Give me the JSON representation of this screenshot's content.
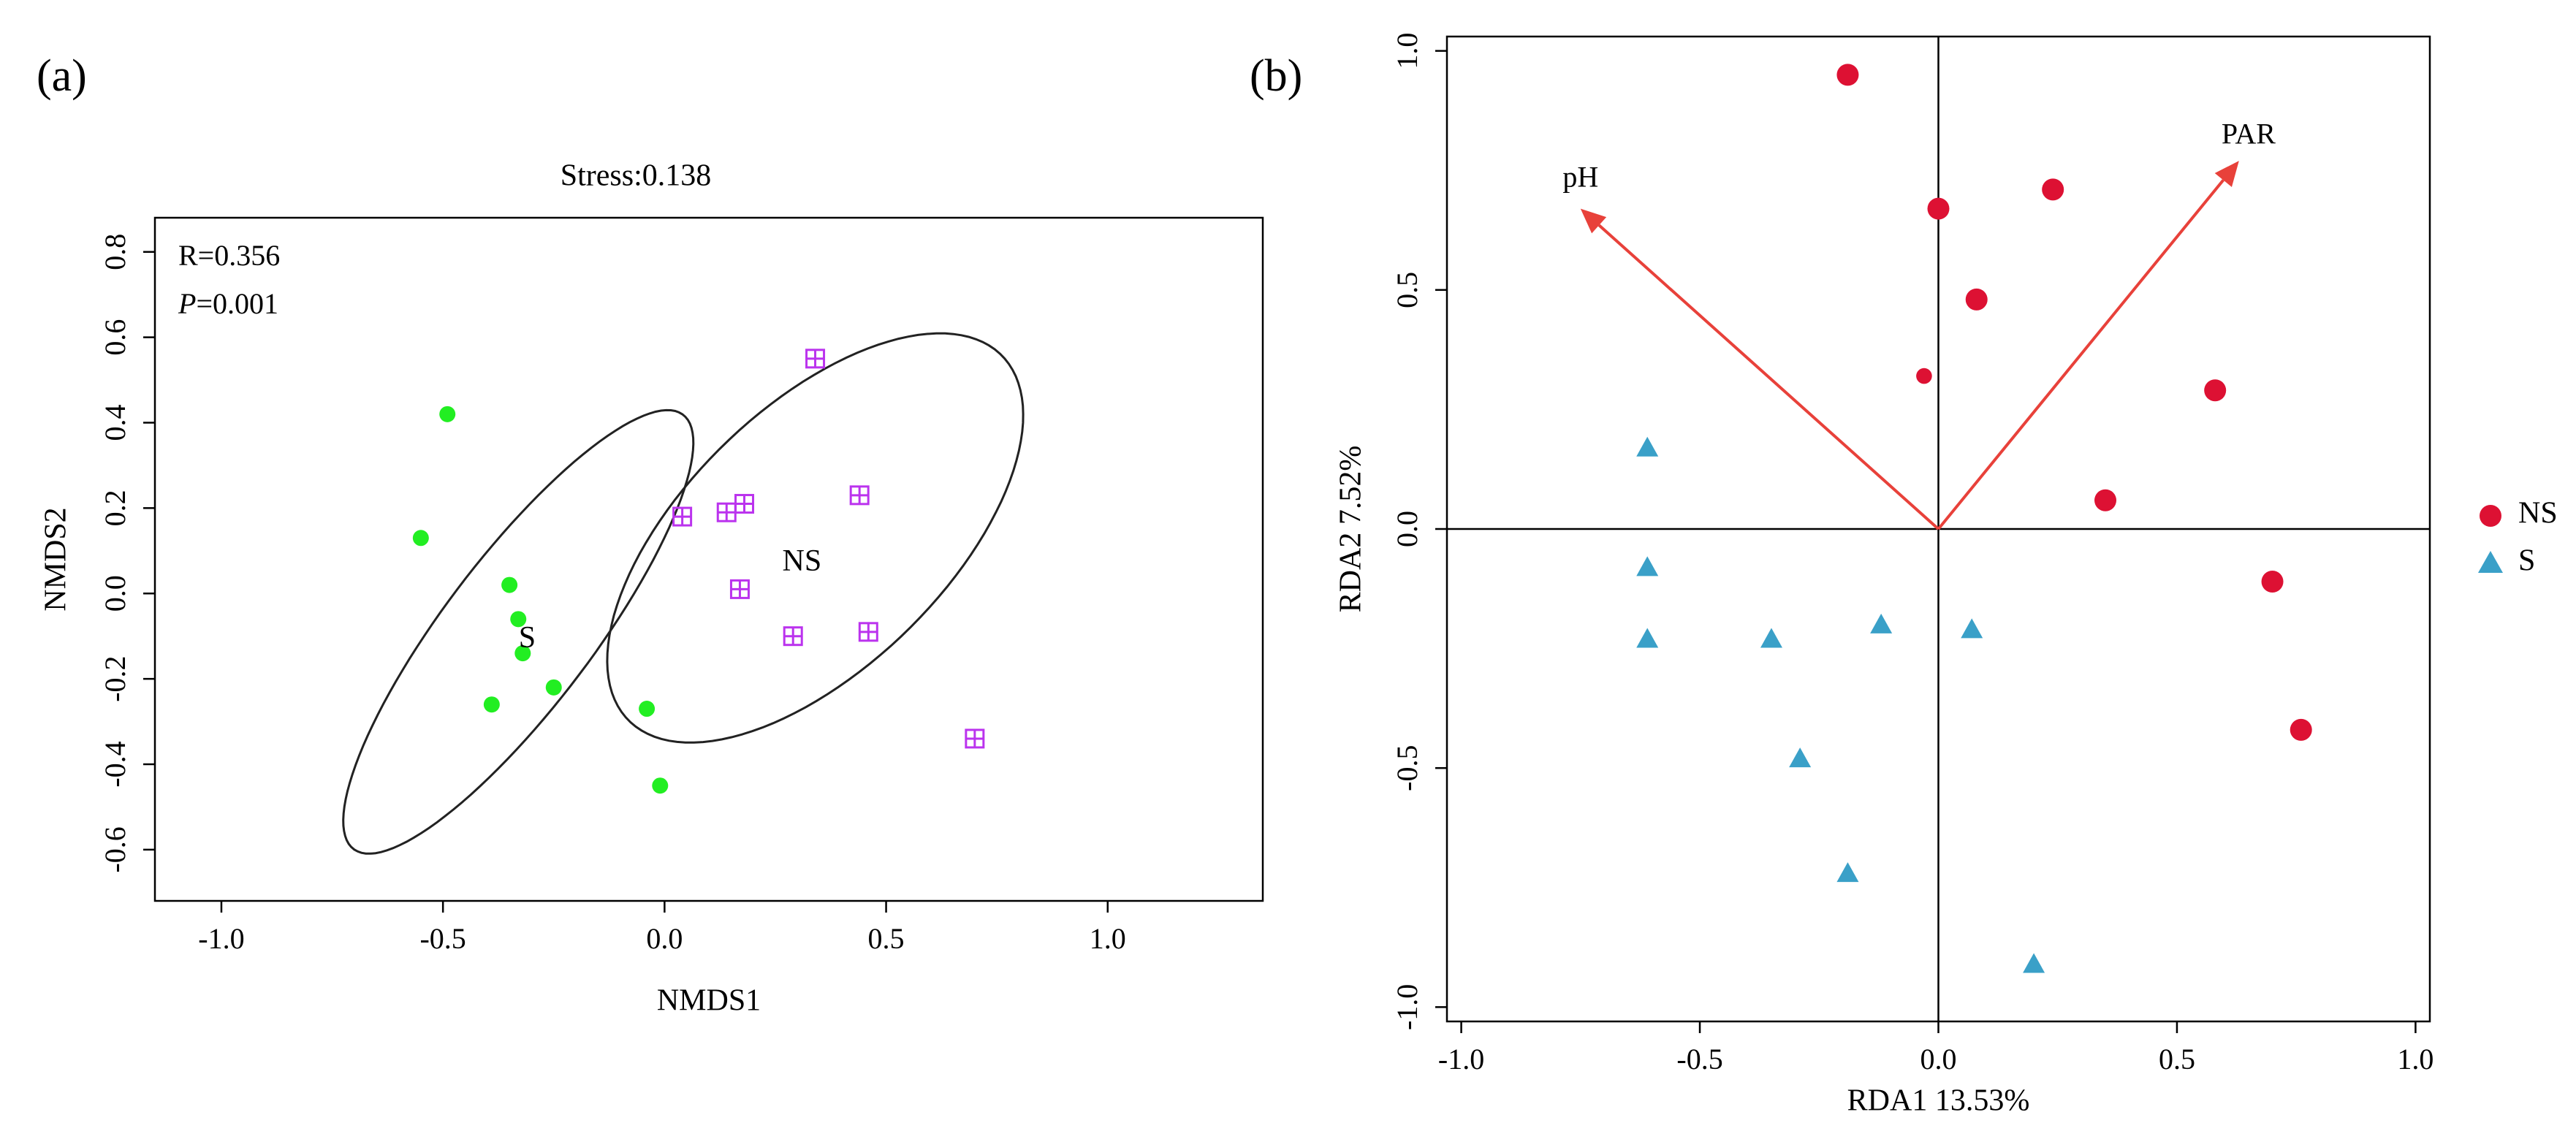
{
  "chart_data": [
    {
      "panel": "(a)",
      "type": "scatter",
      "title": "Stress:0.138",
      "xlabel": "NMDS1",
      "ylabel": "NMDS2",
      "xlim": [
        -1.15,
        1.35
      ],
      "ylim": [
        -0.72,
        0.88
      ],
      "xticks": [
        -1.0,
        -0.5,
        0.0,
        0.5,
        1.0
      ],
      "xtick_labels": [
        "-1.0",
        "-0.5",
        "0.0",
        "0.5",
        "1.0"
      ],
      "yticks": [
        -0.6,
        -0.4,
        -0.2,
        0.0,
        0.2,
        0.4,
        0.6,
        0.8
      ],
      "ytick_labels": [
        "-0.6",
        "-0.4",
        "-0.2",
        "0.0",
        "0.2",
        "0.4",
        "0.6",
        "0.8"
      ],
      "grid": false,
      "annotations": {
        "r": "R=0.356",
        "p_symbol": "P",
        "p_value": "=0.001"
      },
      "series": [
        {
          "name": "S",
          "marker": "circle",
          "color": "#22ee22",
          "points": [
            [
              -0.49,
              0.42
            ],
            [
              -0.55,
              0.13
            ],
            [
              -0.35,
              0.02
            ],
            [
              -0.33,
              -0.06
            ],
            [
              -0.32,
              -0.14
            ],
            [
              -0.25,
              -0.22
            ],
            [
              -0.39,
              -0.26
            ],
            [
              -0.04,
              -0.27
            ],
            [
              -0.01,
              -0.45
            ]
          ],
          "label": "S",
          "label_pos": [
            -0.31,
            -0.11
          ],
          "ellipse": {
            "center": [
              -0.33,
              -0.09
            ],
            "semi_axes": [
              0.63,
              0.17
            ],
            "angle_deg": -54
          }
        },
        {
          "name": "NS",
          "marker": "square-plus",
          "color": "#bb33ee",
          "points": [
            [
              0.34,
              0.55
            ],
            [
              0.04,
              0.18
            ],
            [
              0.14,
              0.19
            ],
            [
              0.18,
              0.21
            ],
            [
              0.44,
              0.23
            ],
            [
              0.17,
              0.01
            ],
            [
              0.29,
              -0.1
            ],
            [
              0.46,
              -0.09
            ],
            [
              0.7,
              -0.34
            ]
          ],
          "label": "NS",
          "label_pos": [
            0.31,
            0.07
          ],
          "ellipse": {
            "center": [
              0.34,
              0.13
            ],
            "semi_axes": [
              0.6,
              0.3
            ],
            "angle_deg": -46
          }
        }
      ]
    },
    {
      "panel": "(b)",
      "type": "scatter",
      "title": "",
      "xlabel": "RDA1 13.53%",
      "ylabel": "RDA2 7.52%",
      "xlim": [
        -1.03,
        1.03
      ],
      "ylim": [
        -1.03,
        1.03
      ],
      "xticks": [
        -1.0,
        -0.5,
        0.0,
        0.5,
        1.0
      ],
      "xtick_labels": [
        "-1.0",
        "-0.5",
        "0.0",
        "0.5",
        "1.0"
      ],
      "yticks": [
        -1.0,
        -0.5,
        0.0,
        0.5,
        1.0
      ],
      "ytick_labels": [
        "-1.0",
        "-0.5",
        "0.0",
        "0.5",
        "1.0"
      ],
      "grid": false,
      "legend_position": "right",
      "series": [
        {
          "name": "NS",
          "marker": "circle",
          "color": "#dd1133",
          "points": [
            [
              -0.19,
              0.95
            ],
            [
              0.0,
              0.67
            ],
            [
              0.24,
              0.71
            ],
            [
              0.08,
              0.48
            ],
            [
              -0.03,
              0.32
            ],
            [
              0.58,
              0.29
            ],
            [
              0.35,
              0.06
            ],
            [
              0.7,
              -0.11
            ],
            [
              0.76,
              -0.42
            ]
          ],
          "sizes": [
            1,
            1,
            1,
            1,
            0.72,
            1,
            1,
            1,
            1
          ]
        },
        {
          "name": "S",
          "marker": "triangle",
          "color": "#3aa0c8",
          "points": [
            [
              -0.61,
              0.17
            ],
            [
              -0.61,
              -0.08
            ],
            [
              -0.61,
              -0.23
            ],
            [
              -0.35,
              -0.23
            ],
            [
              -0.12,
              -0.2
            ],
            [
              0.07,
              -0.21
            ],
            [
              -0.29,
              -0.48
            ],
            [
              -0.19,
              -0.72
            ],
            [
              0.2,
              -0.91
            ]
          ]
        }
      ],
      "arrows": [
        {
          "label": "pH",
          "end": [
            -0.75,
            0.67
          ],
          "label_pos": [
            -0.75,
            0.73
          ]
        },
        {
          "label": "PAR",
          "end": [
            0.63,
            0.77
          ],
          "label_pos": [
            0.65,
            0.82
          ]
        }
      ],
      "arrow_color": "#e8413a"
    }
  ]
}
